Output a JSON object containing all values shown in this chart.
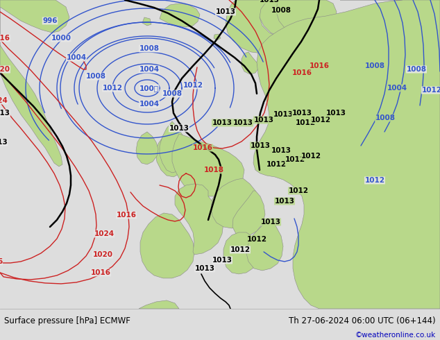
{
  "title_left": "Surface pressure [hPa] ECMWF",
  "title_right": "Th 27-06-2024 06:00 UTC (06+144)",
  "credit": "©weatheronline.co.uk",
  "ocean_color": "#e8e8e8",
  "land_color": "#b8d88a",
  "land_edge_color": "#888888",
  "bottom_bar_color": "#dddddd",
  "credit_color": "#0000bb",
  "fig_width": 6.34,
  "fig_height": 4.9,
  "dpi": 100
}
